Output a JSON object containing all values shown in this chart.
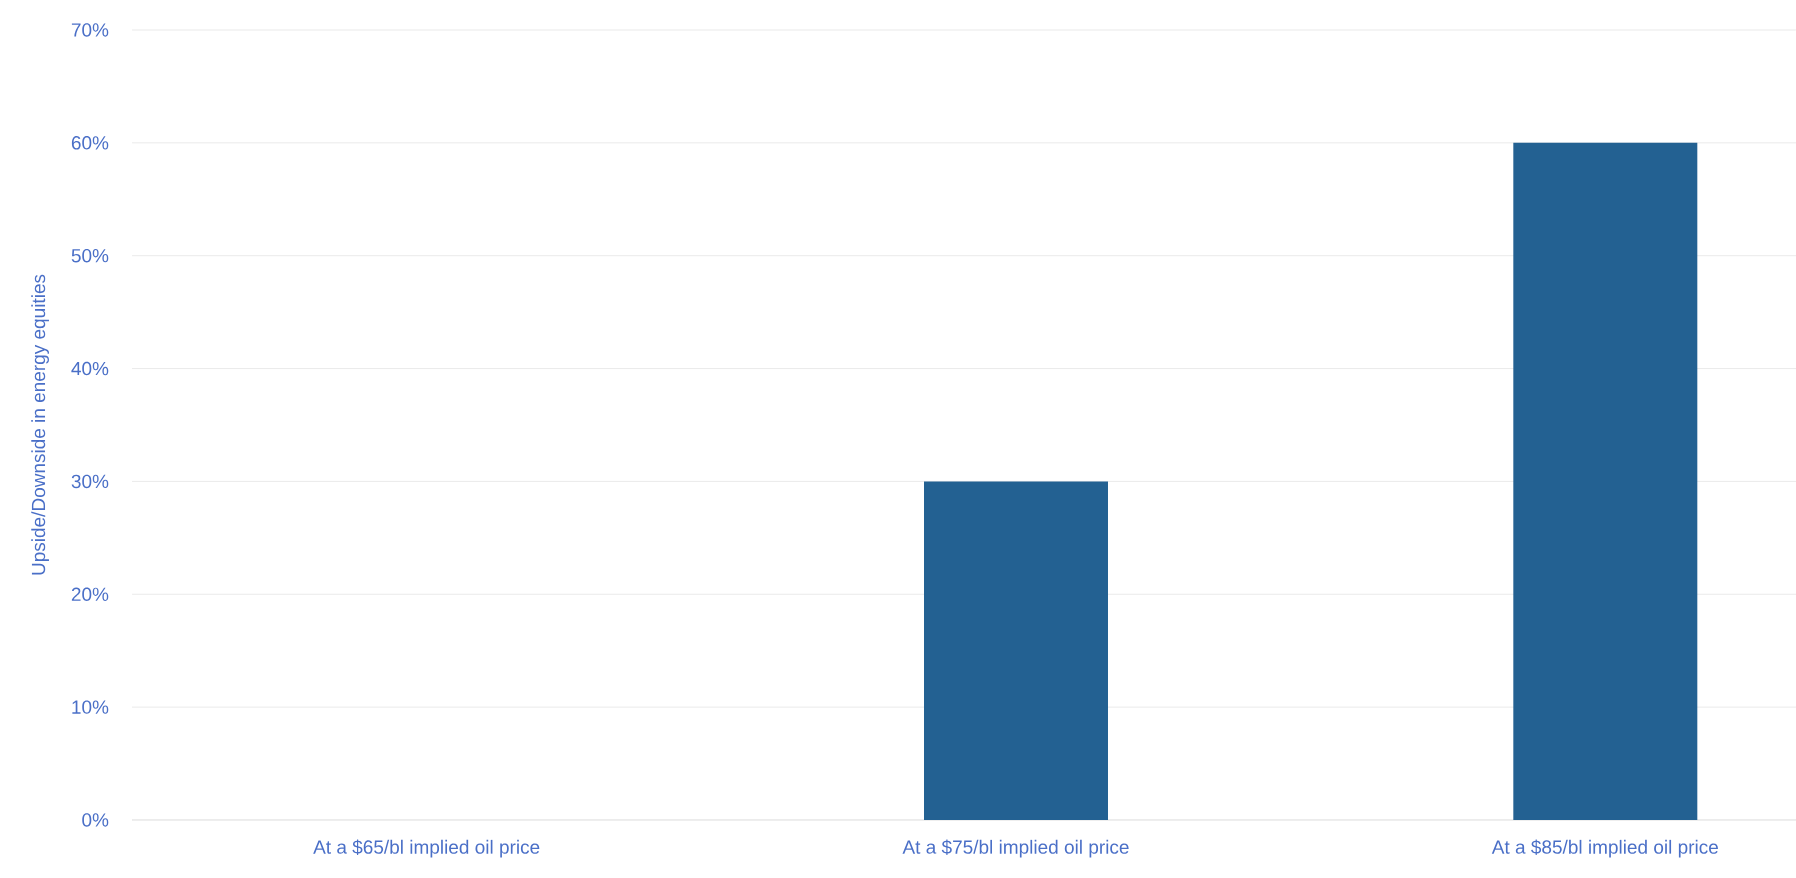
{
  "chart_data": {
    "type": "bar",
    "ylabel": "Upside/Downside in energy equities",
    "categories": [
      "At a $65/bl implied oil price",
      "At a $75/bl implied oil price",
      "At a $85/bl implied oil price"
    ],
    "values": [
      0,
      30,
      60
    ],
    "color": "#236192",
    "ylim": [
      0,
      70
    ],
    "yticks": [
      {
        "value": 0,
        "label": "0%"
      },
      {
        "value": 10,
        "label": "10%"
      },
      {
        "value": 20,
        "label": "20%"
      },
      {
        "value": 30,
        "label": "30%"
      },
      {
        "value": 40,
        "label": "40%"
      },
      {
        "value": 50,
        "label": "50%"
      },
      {
        "value": 60,
        "label": "60%"
      },
      {
        "value": 70,
        "label": "70%"
      }
    ],
    "grid": "y"
  }
}
